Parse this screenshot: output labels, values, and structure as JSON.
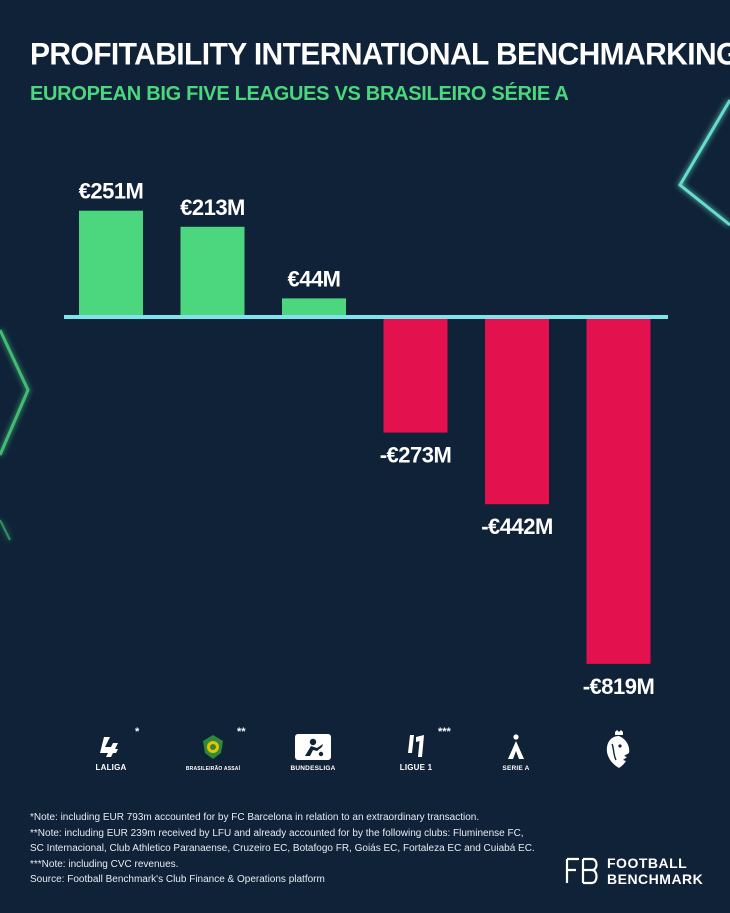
{
  "header": {
    "title": "PROFITABILITY INTERNATIONAL BENCHMARKING",
    "subtitle": "EUROPEAN BIG FIVE LEAGUES VS BRASILEIRO SÉRIE A"
  },
  "colors": {
    "background": "#0f2238",
    "positive": "#4cd67e",
    "negative": "#e4114f",
    "baseline": "#7fe3ec",
    "accent_glow": "#5ff0c8"
  },
  "chart_data": {
    "type": "bar",
    "title": "PROFITABILITY INTERNATIONAL BENCHMARKING",
    "subtitle": "EUROPEAN BIG FIVE LEAGUES VS BRASILEIRO SÉRIE A",
    "categories": [
      "LALIGA",
      "BRASILEIRÃO ASSAÍ",
      "BUNDESLIGA",
      "LIGUE 1",
      "SERIE A",
      "PREMIER LEAGUE"
    ],
    "values": [
      251,
      213,
      44,
      -273,
      -442,
      -819
    ],
    "data_labels": [
      "€251M",
      "€213M",
      "€44M",
      "-€273M",
      "-€442M",
      "-€819M"
    ],
    "ylim": [
      -819,
      251
    ],
    "grid": false,
    "legend": "none"
  },
  "leagues": [
    {
      "name": "LALIGA",
      "icon": "laliga-logo-icon",
      "asterisk": "*"
    },
    {
      "name": "BRASILEIRÃO ASSAÍ",
      "icon": "brasileirao-logo-icon",
      "asterisk": "**"
    },
    {
      "name": "BUNDESLIGA",
      "icon": "bundesliga-logo-icon",
      "asterisk": ""
    },
    {
      "name": "LIGUE 1",
      "icon": "ligue1-logo-icon",
      "asterisk": "***"
    },
    {
      "name": "SERIE A",
      "icon": "serie-a-logo-icon",
      "asterisk": ""
    },
    {
      "name": "",
      "icon": "premier-league-lion-icon",
      "asterisk": ""
    }
  ],
  "footnotes": [
    "*Note: including EUR 793m accounted for by FC Barcelona in relation to an extraordinary transaction.",
    "**Note: including EUR 239m received by LFU and already accounted for by the following clubs: Fluminense FC,",
    "SC Internacional, Club Athletico Paranaense, Cruzeiro EC, Botafogo FR, Goiás EC, Fortaleza EC and Cuiabá EC.",
    "***Note: including CVC revenues.",
    "Source: Football Benchmark's Club Finance & Operations platform"
  ],
  "brand": {
    "line1": "FOOTBALL",
    "line2": "BENCHMARK",
    "icon": "fb-monogram-icon"
  }
}
